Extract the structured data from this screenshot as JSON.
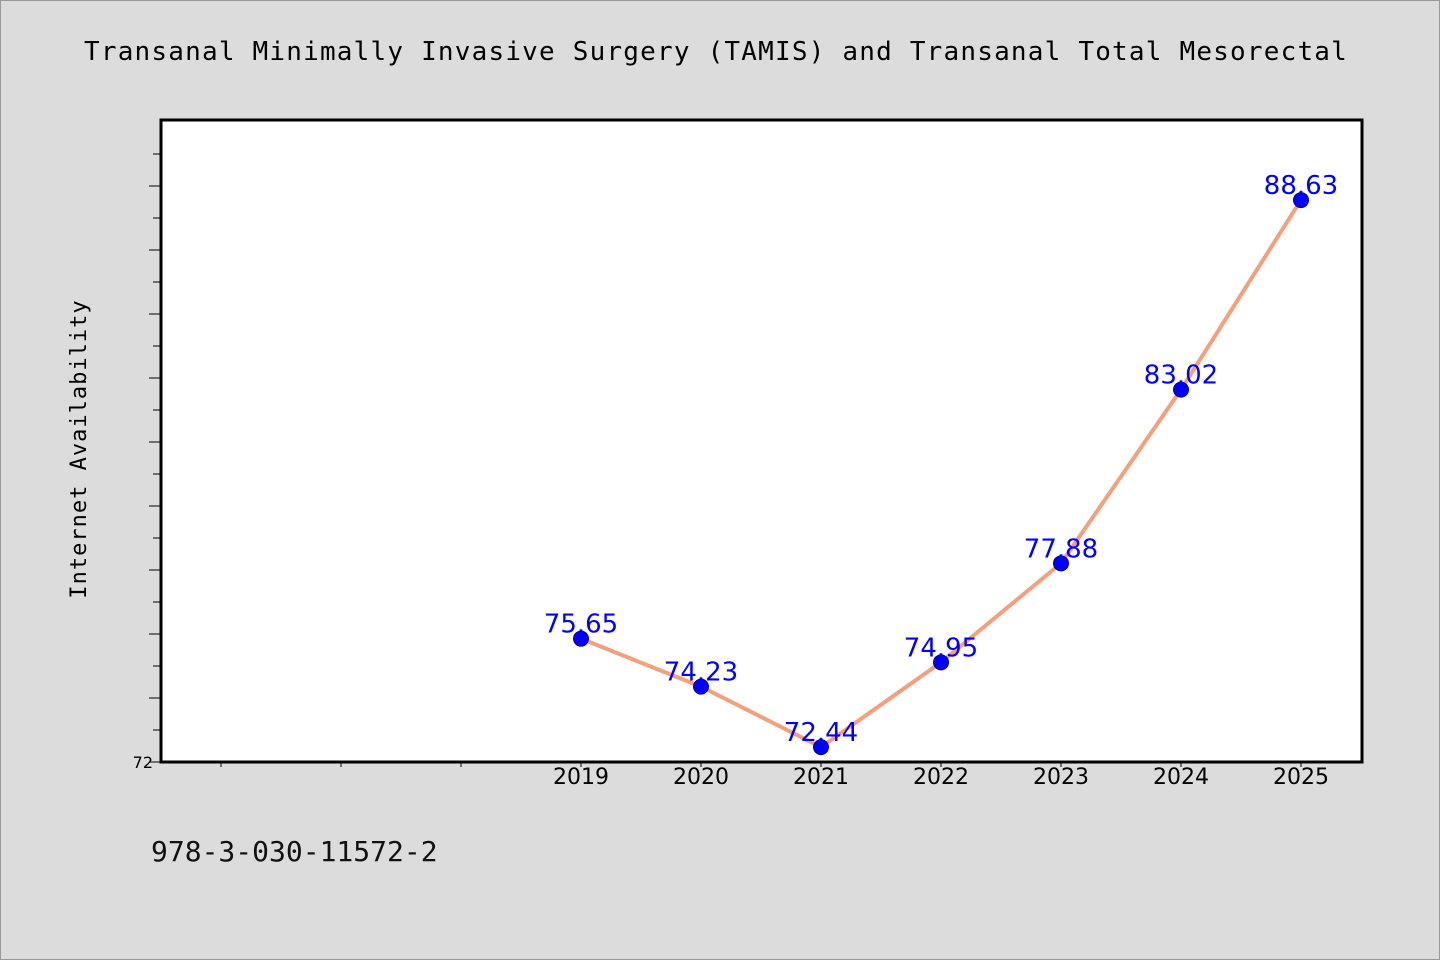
{
  "chart_data": {
    "type": "line",
    "title": "Transanal Minimally Invasive Surgery (TAMIS) and Transanal Total Mesorectal Exci",
    "xlabel": "",
    "ylabel": "Internet Availability",
    "y_tick_labels": [
      "72"
    ],
    "ylim": [
      72,
      91
    ],
    "grid": false,
    "categories": [
      "2019",
      "2020",
      "2021",
      "2022",
      "2023",
      "2024",
      "2025"
    ],
    "series": [
      {
        "name": "",
        "values": [
          75.65,
          74.23,
          72.44,
          74.95,
          77.88,
          83.02,
          88.63
        ],
        "labels": [
          "75.65",
          "74.23",
          "72.44",
          "74.95",
          "77.88",
          "83.02",
          "88.63"
        ]
      }
    ],
    "colors": {
      "line": "#f4a07d",
      "marker": "#0000ff",
      "label": "#0000ff",
      "plot_background": "#ffffff",
      "figure_background": "#dcdcdc"
    }
  },
  "footnote": "978-3-030-11572-2"
}
